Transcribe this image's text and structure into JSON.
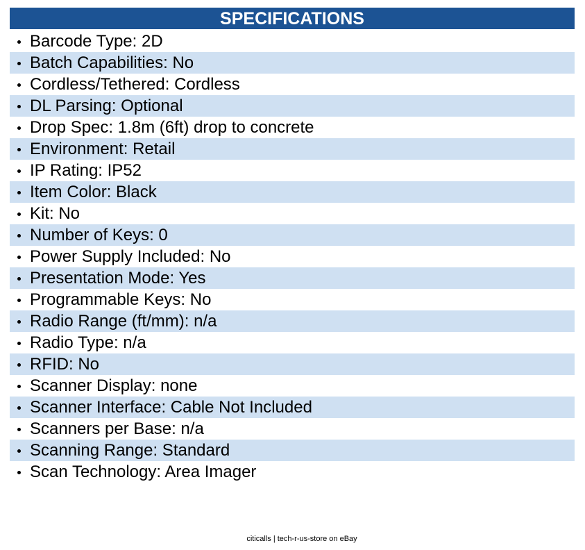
{
  "header": {
    "title": "SPECIFICATIONS"
  },
  "items": [
    "Barcode Type: 2D",
    "Batch Capabilities: No",
    "Cordless/Tethered: Cordless",
    "DL Parsing: Optional",
    "Drop Spec: 1.8m (6ft) drop to concrete",
    "Environment: Retail",
    "IP Rating: IP52",
    "Item Color: Black",
    "Kit: No",
    "Number of Keys: 0",
    "Power Supply Included: No",
    "Presentation Mode: Yes",
    "Programmable Keys: No",
    "Radio Range (ft/mm): n/a",
    "Radio Type: n/a",
    "RFID: No",
    "Scanner Display: none",
    "Scanner Interface: Cable Not Included",
    "Scanners per Base: n/a",
    "Scanning Range: Standard",
    "Scan Technology: Area Imager"
  ],
  "footer": "citicalls | tech-r-us-store on eBay"
}
